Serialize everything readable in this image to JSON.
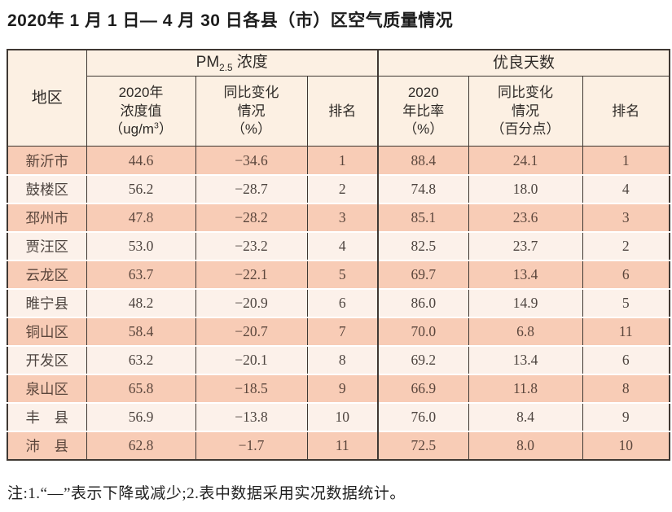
{
  "page": {
    "title": "2020年 1 月 1 日— 4 月 30 日各县（市）区空气质量情况",
    "note": "注:1.“—”表示下降或减少;2.表中数据采用实况数据统计。"
  },
  "table": {
    "headers": {
      "region": "地区",
      "pm_group": {
        "base": "PM",
        "sub": "2.5",
        "rest": " 浓度"
      },
      "days_group": "优良天数",
      "pm_value": {
        "line1": "2020年",
        "line2": "浓度值",
        "line3_pre": "（ug/m",
        "line3_sup": "3",
        "line3_post": "）"
      },
      "pm_change": {
        "line1": "同比变化",
        "line2": "情况",
        "line3": "（%）"
      },
      "pm_rank": "排名",
      "days_ratio": {
        "line1": "2020",
        "line2": "年比率",
        "line3": "（%）"
      },
      "days_change": {
        "line1": "同比变化",
        "line2": "情况",
        "line3": "（百分点）"
      },
      "days_rank": "排名"
    },
    "rows": [
      {
        "region": "新沂市",
        "pm_value": "44.6",
        "pm_change": "−34.6",
        "pm_rank": "1",
        "days_ratio": "88.4",
        "days_change": "24.1",
        "days_rank": "1"
      },
      {
        "region": "鼓楼区",
        "pm_value": "56.2",
        "pm_change": "−28.7",
        "pm_rank": "2",
        "days_ratio": "74.8",
        "days_change": "18.0",
        "days_rank": "4"
      },
      {
        "region": "邳州市",
        "pm_value": "47.8",
        "pm_change": "−28.2",
        "pm_rank": "3",
        "days_ratio": "85.1",
        "days_change": "23.6",
        "days_rank": "3"
      },
      {
        "region": "贾汪区",
        "pm_value": "53.0",
        "pm_change": "−23.2",
        "pm_rank": "4",
        "days_ratio": "82.5",
        "days_change": "23.7",
        "days_rank": "2"
      },
      {
        "region": "云龙区",
        "pm_value": "63.7",
        "pm_change": "−22.1",
        "pm_rank": "5",
        "days_ratio": "69.7",
        "days_change": "13.4",
        "days_rank": "6"
      },
      {
        "region": "睢宁县",
        "pm_value": "48.2",
        "pm_change": "−20.9",
        "pm_rank": "6",
        "days_ratio": "86.0",
        "days_change": "14.9",
        "days_rank": "5"
      },
      {
        "region": "铜山区",
        "pm_value": "58.4",
        "pm_change": "−20.7",
        "pm_rank": "7",
        "days_ratio": "70.0",
        "days_change": "6.8",
        "days_rank": "11"
      },
      {
        "region": "开发区",
        "pm_value": "63.2",
        "pm_change": "−20.1",
        "pm_rank": "8",
        "days_ratio": "69.2",
        "days_change": "13.4",
        "days_rank": "6"
      },
      {
        "region": "泉山区",
        "pm_value": "65.8",
        "pm_change": "−18.5",
        "pm_rank": "9",
        "days_ratio": "66.9",
        "days_change": "11.8",
        "days_rank": "8"
      },
      {
        "region": "丰　县",
        "pm_value": "56.9",
        "pm_change": "−13.8",
        "pm_rank": "10",
        "days_ratio": "76.0",
        "days_change": "8.4",
        "days_rank": "9"
      },
      {
        "region": "沛　县",
        "pm_value": "62.8",
        "pm_change": "−1.7",
        "pm_rank": "11",
        "days_ratio": "72.5",
        "days_change": "8.0",
        "days_rank": "10"
      }
    ],
    "colors": {
      "row_dark": "#f8ccb6",
      "row_light": "#fcf1ea",
      "header_bg": "#fcf0e3",
      "border": "#3f3833"
    }
  }
}
